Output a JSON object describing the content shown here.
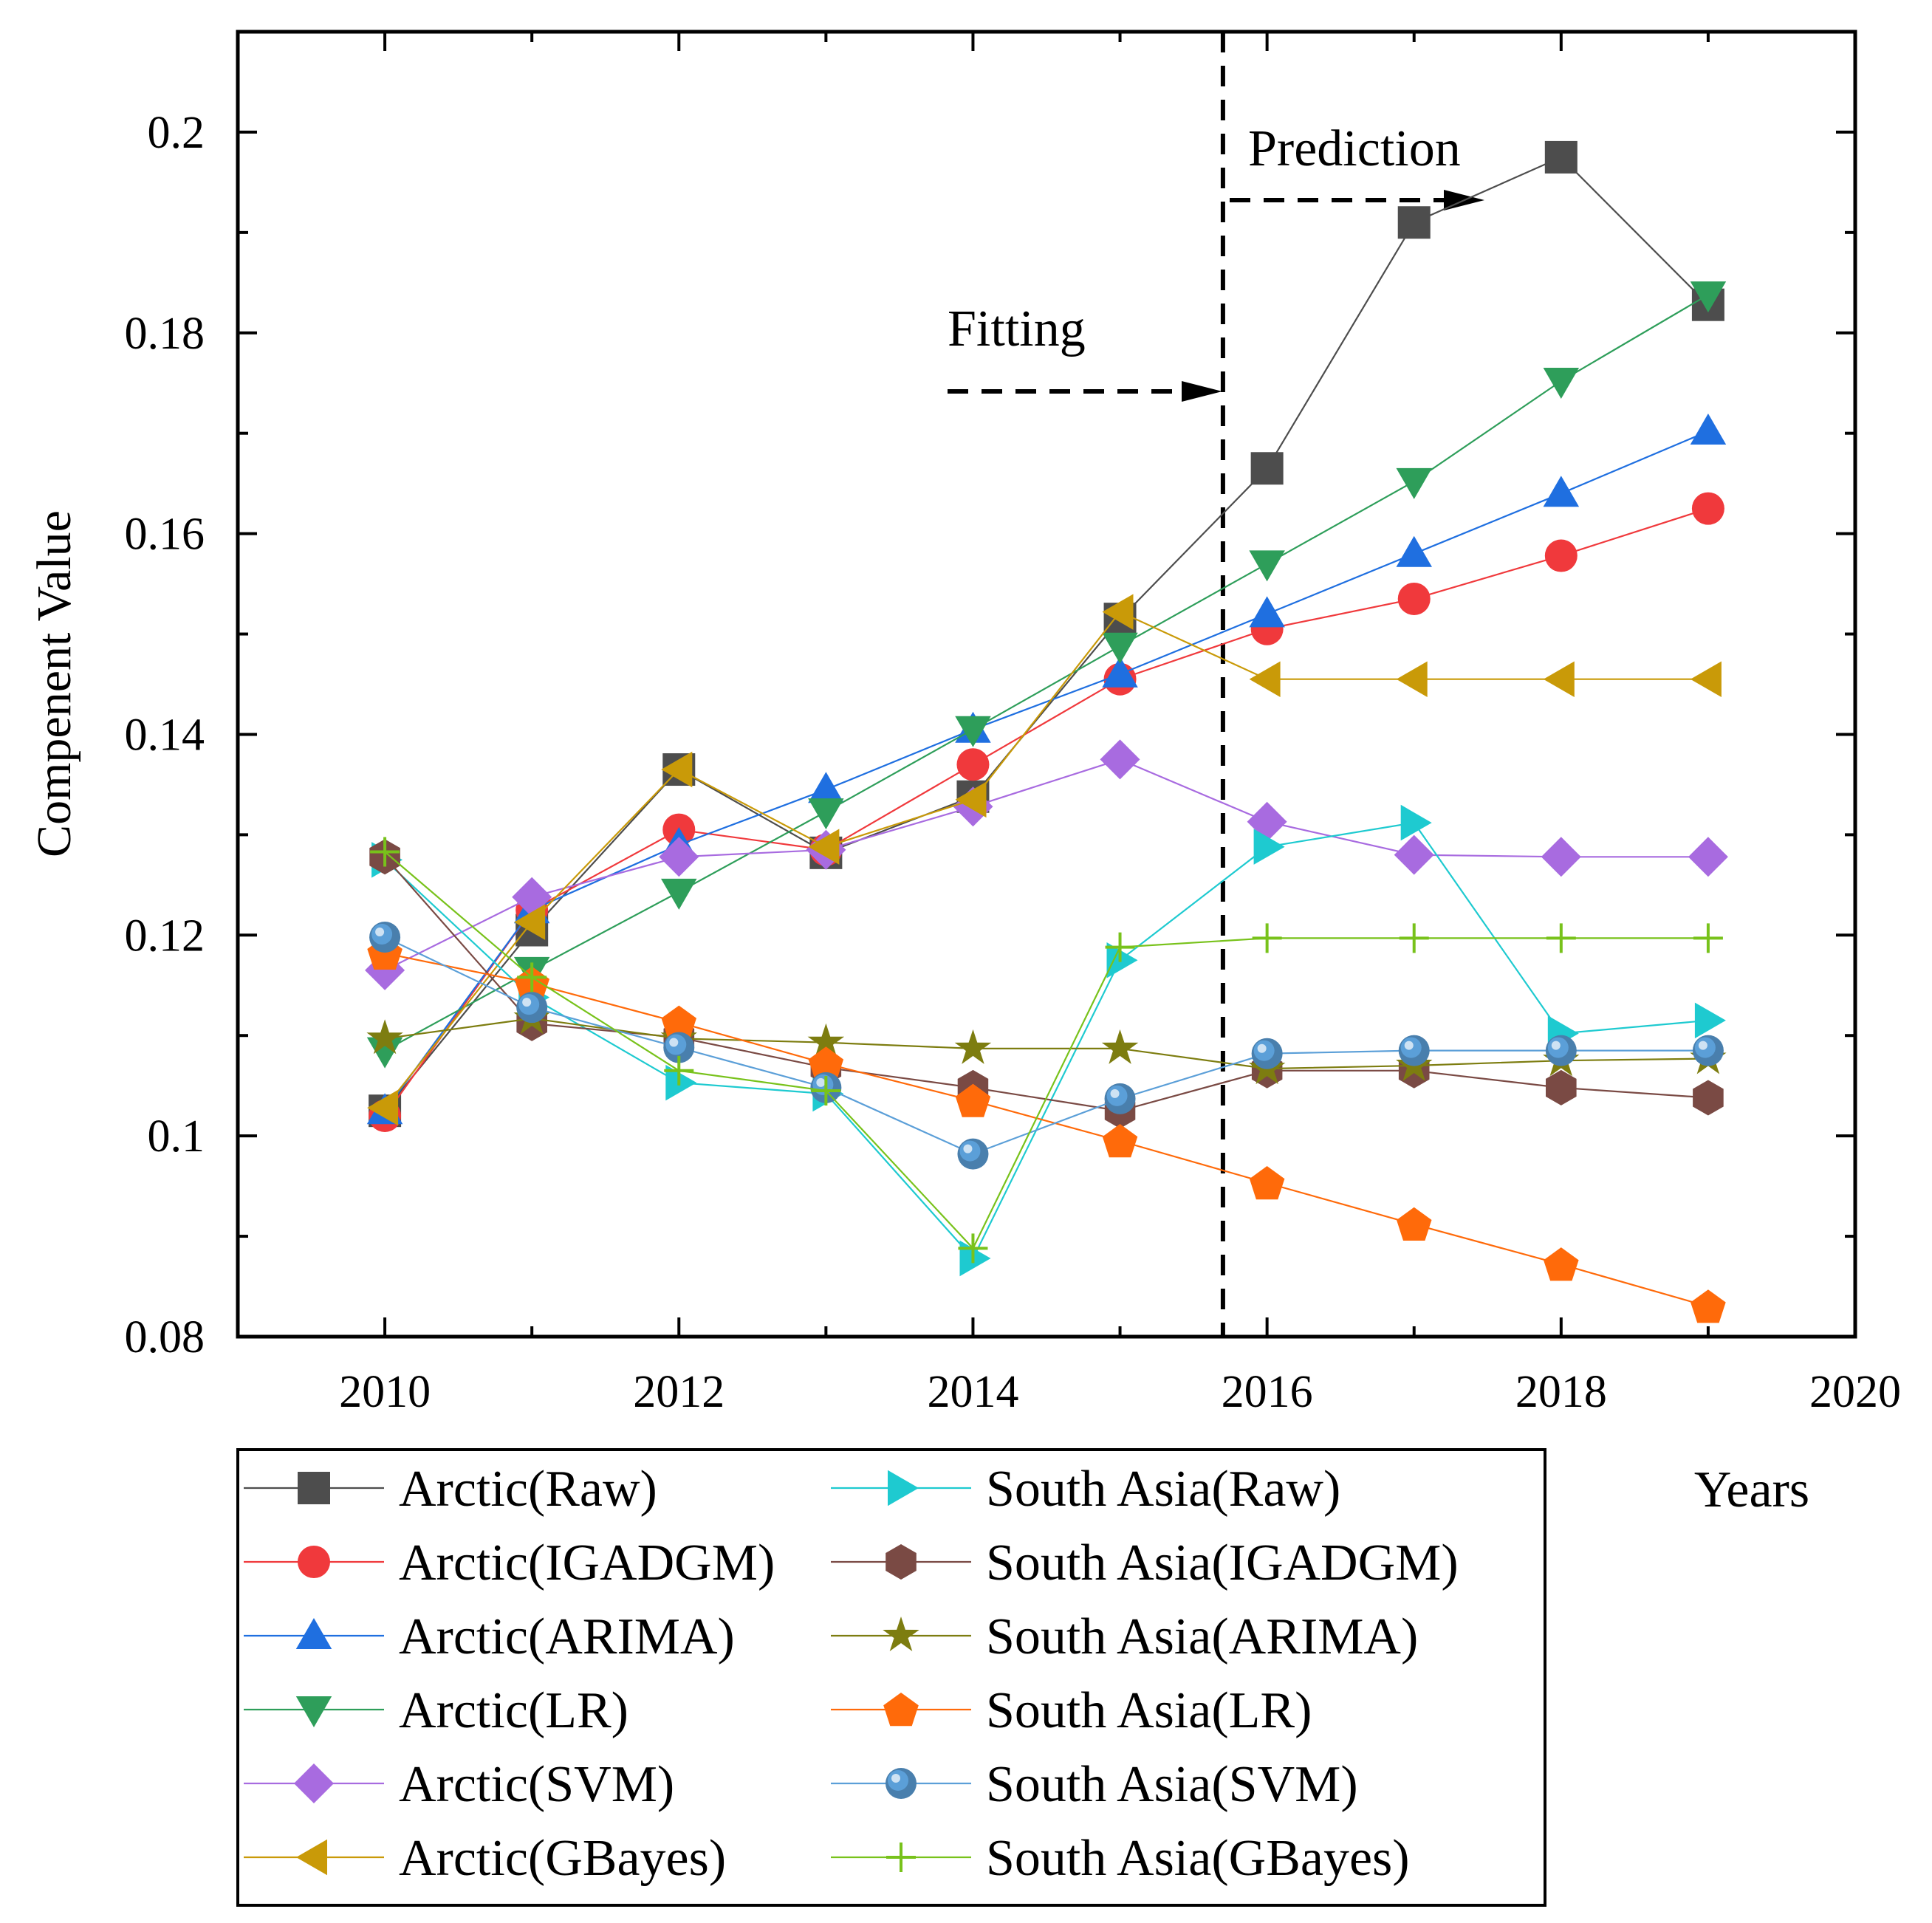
{
  "chart_data": {
    "type": "line",
    "title": "",
    "xlabel": "Years",
    "ylabel": "Compenent Value",
    "xlim": [
      2009,
      2020
    ],
    "ylim": [
      0.08,
      0.21
    ],
    "xticks": [
      2010,
      2012,
      2014,
      2016,
      2018,
      2020
    ],
    "yticks": [
      0.08,
      0.1,
      0.12,
      0.14,
      0.16,
      0.18,
      0.2
    ],
    "ytick_labels": [
      "0.08",
      "0.1",
      "0.12",
      "0.14",
      "0.16",
      "0.18",
      "0.2"
    ],
    "grid": false,
    "legend_position": "bottom",
    "split_year": 2015.7,
    "annotations": {
      "fitting": "Fitting",
      "prediction": "Prediction"
    },
    "series": [
      {
        "name": "Arctic(Raw)",
        "color": "#4d4d4d",
        "marker": "square",
        "x": [
          2010,
          2011,
          2012,
          2013,
          2014,
          2015,
          2016,
          2017,
          2018,
          2019
        ],
        "values": [
          0.1025,
          0.1205,
          0.1365,
          0.1282,
          0.1338,
          0.1515,
          0.1665,
          0.191,
          0.1975,
          0.1828
        ]
      },
      {
        "name": "Arctic(IGADGM)",
        "color": "#f0393c",
        "marker": "circle",
        "x": [
          2010,
          2011,
          2012,
          2013,
          2014,
          2015,
          2016,
          2017,
          2018,
          2019
        ],
        "values": [
          0.102,
          0.1225,
          0.1305,
          0.1285,
          0.137,
          0.1455,
          0.1505,
          0.1535,
          0.1578,
          0.1625
        ]
      },
      {
        "name": "Arctic(ARIMA)",
        "color": "#1f6fe0",
        "marker": "triangle-up",
        "x": [
          2010,
          2011,
          2012,
          2013,
          2014,
          2015,
          2016,
          2017,
          2018,
          2019
        ],
        "values": [
          0.1025,
          0.1225,
          0.129,
          0.1345,
          0.1405,
          0.146,
          0.152,
          0.158,
          0.164,
          0.1702
        ]
      },
      {
        "name": "Arctic(LR)",
        "color": "#2e9e5a",
        "marker": "triangle-down",
        "x": [
          2010,
          2011,
          2012,
          2013,
          2014,
          2015,
          2016,
          2017,
          2018,
          2019
        ],
        "values": [
          0.1085,
          0.1165,
          0.1243,
          0.1323,
          0.1405,
          0.1488,
          0.157,
          0.1652,
          0.1752,
          0.1838
        ]
      },
      {
        "name": "Arctic(SVM)",
        "color": "#a86be0",
        "marker": "diamond",
        "x": [
          2010,
          2011,
          2012,
          2013,
          2014,
          2015,
          2016,
          2017,
          2018,
          2019
        ],
        "values": [
          0.1165,
          0.1238,
          0.1278,
          0.1285,
          0.1328,
          0.1375,
          0.1313,
          0.128,
          0.1278,
          0.1278
        ]
      },
      {
        "name": "Arctic(GBayes)",
        "color": "#c99a08",
        "marker": "triangle-left",
        "x": [
          2010,
          2011,
          2012,
          2013,
          2014,
          2015,
          2016,
          2017,
          2018,
          2019
        ],
        "values": [
          0.1028,
          0.1213,
          0.1365,
          0.1288,
          0.1335,
          0.1522,
          0.1455,
          0.1455,
          0.1455,
          0.1455
        ]
      },
      {
        "name": "South Asia(Raw)",
        "color": "#1ecad0",
        "marker": "triangle-right",
        "x": [
          2010,
          2011,
          2012,
          2013,
          2014,
          2015,
          2016,
          2017,
          2018,
          2019
        ],
        "values": [
          0.1275,
          0.1138,
          0.1053,
          0.1042,
          0.0878,
          0.1175,
          0.1288,
          0.1312,
          0.1102,
          0.1115
        ]
      },
      {
        "name": "South Asia(IGADGM)",
        "color": "#7a4a44",
        "marker": "hexagon",
        "x": [
          2010,
          2011,
          2012,
          2013,
          2014,
          2015,
          2016,
          2017,
          2018,
          2019
        ],
        "values": [
          0.1278,
          0.1112,
          0.1098,
          0.1068,
          0.1048,
          0.1025,
          0.1065,
          0.1065,
          0.1048,
          0.1038
        ]
      },
      {
        "name": "South Asia(ARIMA)",
        "color": "#7d7d10",
        "marker": "star",
        "x": [
          2010,
          2011,
          2012,
          2013,
          2014,
          2015,
          2016,
          2017,
          2018,
          2019
        ],
        "values": [
          0.1097,
          0.1117,
          0.1097,
          0.1093,
          0.1087,
          0.1087,
          0.1067,
          0.107,
          0.1075,
          0.1077
        ]
      },
      {
        "name": "South Asia(LR)",
        "color": "#ff6a0a",
        "marker": "pentagon",
        "x": [
          2010,
          2011,
          2012,
          2013,
          2014,
          2015,
          2016,
          2017,
          2018,
          2019
        ],
        "values": [
          0.1182,
          0.1152,
          0.1113,
          0.1072,
          0.1035,
          0.0995,
          0.0953,
          0.0912,
          0.0872,
          0.083
        ]
      },
      {
        "name": "South Asia(SVM)",
        "color": "#5b9fd8",
        "marker": "sphere",
        "x": [
          2010,
          2011,
          2012,
          2013,
          2014,
          2015,
          2016,
          2017,
          2018,
          2019
        ],
        "values": [
          0.1198,
          0.1128,
          0.1088,
          0.1048,
          0.0982,
          0.1037,
          0.1082,
          0.1085,
          0.1085,
          0.1085
        ]
      },
      {
        "name": "South Asia(GBayes)",
        "color": "#78c21b",
        "marker": "plus",
        "x": [
          2010,
          2011,
          2012,
          2013,
          2014,
          2015,
          2016,
          2017,
          2018,
          2019
        ],
        "values": [
          0.1283,
          0.1158,
          0.1065,
          0.1045,
          0.0888,
          0.1188,
          0.1197,
          0.1197,
          0.1197,
          0.1197
        ]
      }
    ]
  }
}
